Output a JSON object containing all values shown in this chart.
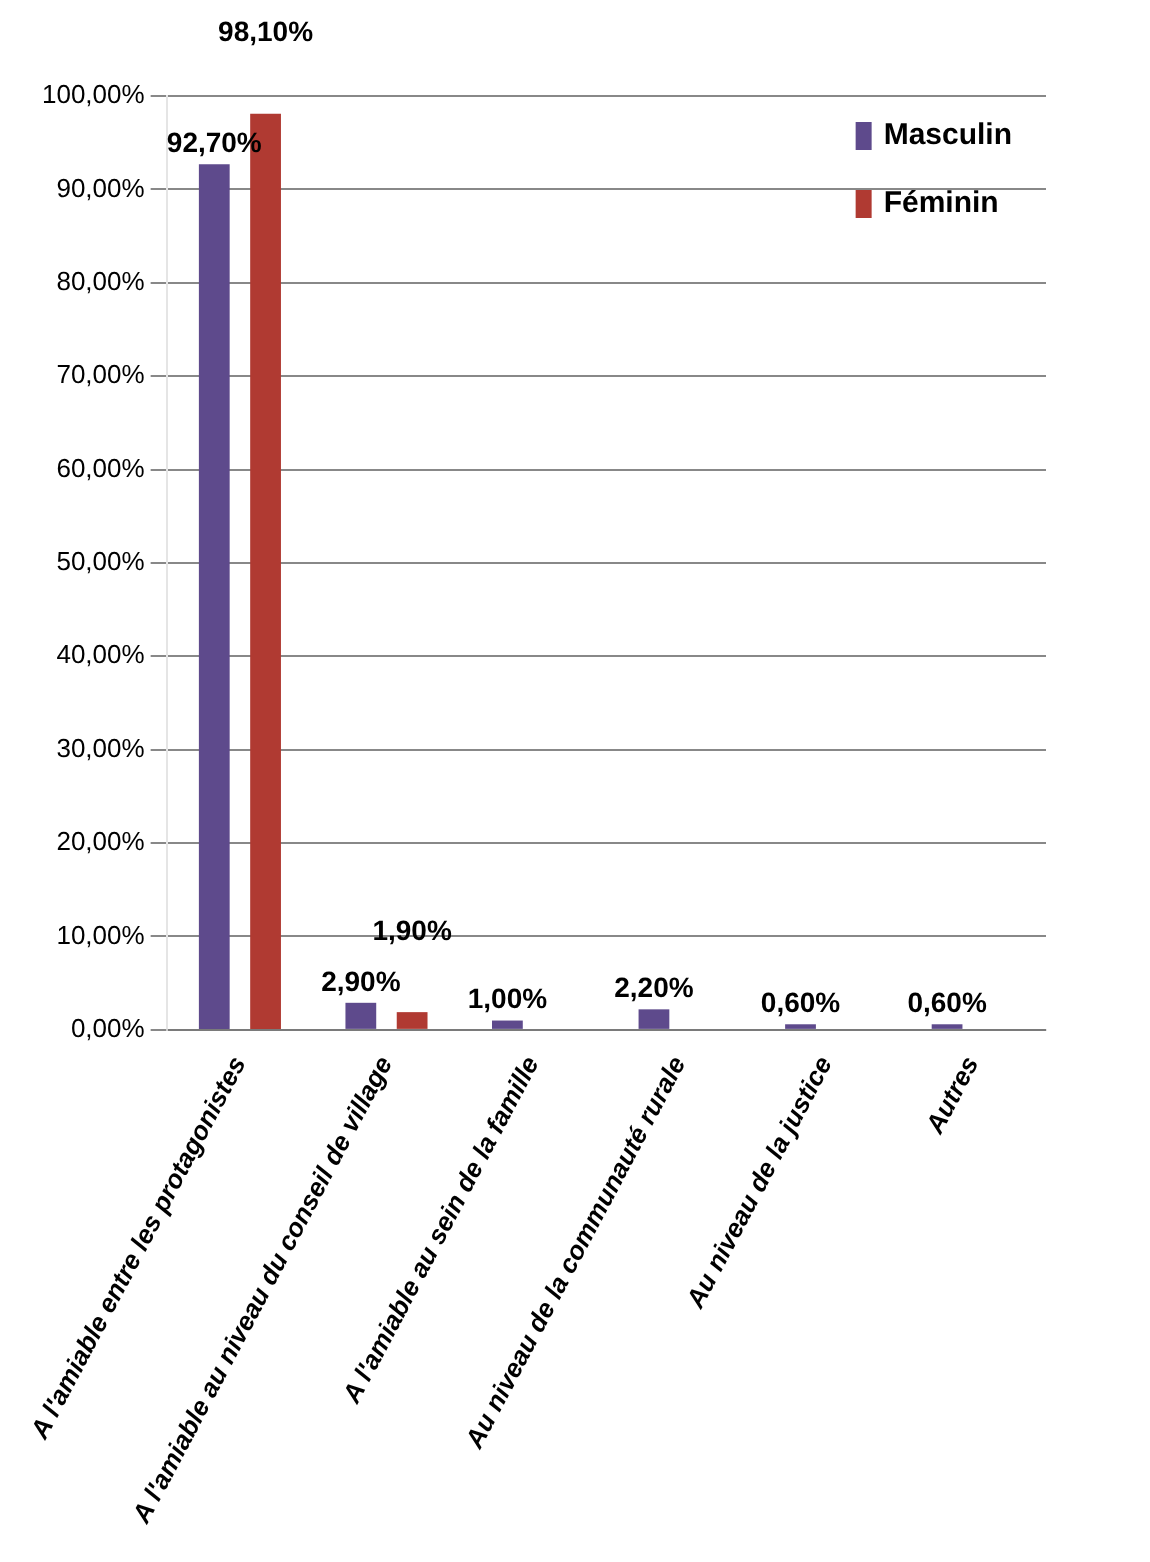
{
  "chart_data": {
    "type": "bar",
    "categories": [
      "A l'amiable entre les protagonistes",
      "A l'amiable au niveau du conseil de village",
      "A l'amiable au sein de la famille",
      "Au niveau de la communauté rurale",
      "Au niveau de la justice",
      "Autres"
    ],
    "series": [
      {
        "name": "Masculin",
        "color": "#5e4a8c",
        "values": [
          92.7,
          2.9,
          1.0,
          2.2,
          0.6,
          0.6
        ],
        "value_labels": [
          "92,70%",
          "2,90%",
          "1,00%",
          "2,20%",
          "0,60%",
          "0,60%"
        ]
      },
      {
        "name": "Féminin",
        "color": "#b03a32",
        "values": [
          98.1,
          1.9,
          null,
          null,
          null,
          null
        ],
        "value_labels": [
          "98,10%",
          "1,90%",
          null,
          null,
          null,
          null
        ]
      }
    ],
    "ylim": [
      0,
      100
    ],
    "yticks": [
      {
        "value": 0,
        "label": "0,00%"
      },
      {
        "value": 10,
        "label": "10,00%"
      },
      {
        "value": 20,
        "label": "20,00%"
      },
      {
        "value": 30,
        "label": "30,00%"
      },
      {
        "value": 40,
        "label": "40,00%"
      },
      {
        "value": 50,
        "label": "50,00%"
      },
      {
        "value": 60,
        "label": "60,00%"
      },
      {
        "value": 70,
        "label": "70,00%"
      },
      {
        "value": 80,
        "label": "80,00%"
      },
      {
        "value": 90,
        "label": "90,00%"
      },
      {
        "value": 100,
        "label": "100,00%"
      }
    ],
    "grid": "y",
    "legend": "top right"
  }
}
